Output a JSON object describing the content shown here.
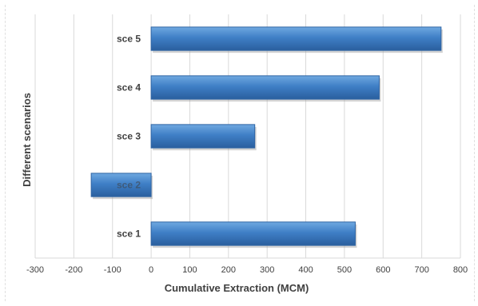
{
  "chart_data": {
    "type": "bar",
    "orientation": "horizontal",
    "categories": [
      "sce 1",
      "sce 2",
      "sce 3",
      "sce 4",
      "sce 5"
    ],
    "values": [
      528,
      -155,
      268,
      590,
      750
    ],
    "xlabel": "Cumulative Extraction (MCM)",
    "ylabel": "Different scenarios",
    "xlim": [
      -300,
      800
    ],
    "xticks": [
      "-300",
      "-200",
      "-100",
      "0",
      "100",
      "200",
      "300",
      "400",
      "500",
      "600",
      "700",
      "800"
    ],
    "grid": "vertical",
    "legend": "none",
    "bar_color": "#4a86c8"
  }
}
